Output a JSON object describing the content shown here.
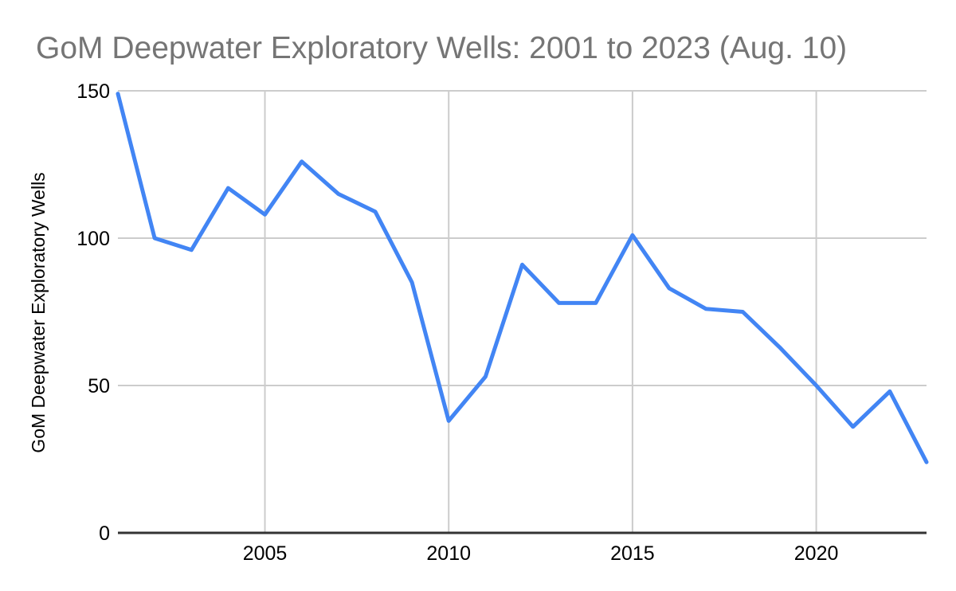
{
  "chart_data": {
    "type": "line",
    "title": "GoM Deepwater Exploratory Wells: 2001 to 2023 (Aug. 10)",
    "xlabel": "",
    "ylabel": "GoM Deepwater Exploratory Wells",
    "x": [
      2001,
      2002,
      2003,
      2004,
      2005,
      2006,
      2007,
      2008,
      2009,
      2010,
      2011,
      2012,
      2013,
      2014,
      2015,
      2016,
      2017,
      2018,
      2019,
      2020,
      2021,
      2022,
      2023
    ],
    "values": [
      149,
      100,
      96,
      117,
      108,
      126,
      115,
      109,
      85,
      38,
      53,
      91,
      78,
      78,
      101,
      83,
      76,
      75,
      63,
      50,
      36,
      48,
      24
    ],
    "xlim": [
      2001,
      2023
    ],
    "ylim": [
      0,
      150
    ],
    "x_ticks": [
      2005,
      2010,
      2015,
      2020
    ],
    "y_ticks": [
      0,
      50,
      100,
      150
    ],
    "grid": true,
    "legend": "none",
    "colors": {
      "line": "#4285f4",
      "grid": "#cccccc",
      "axis": "#333333",
      "title": "#757575",
      "tick_label": "#000000",
      "background": "#ffffff"
    }
  }
}
